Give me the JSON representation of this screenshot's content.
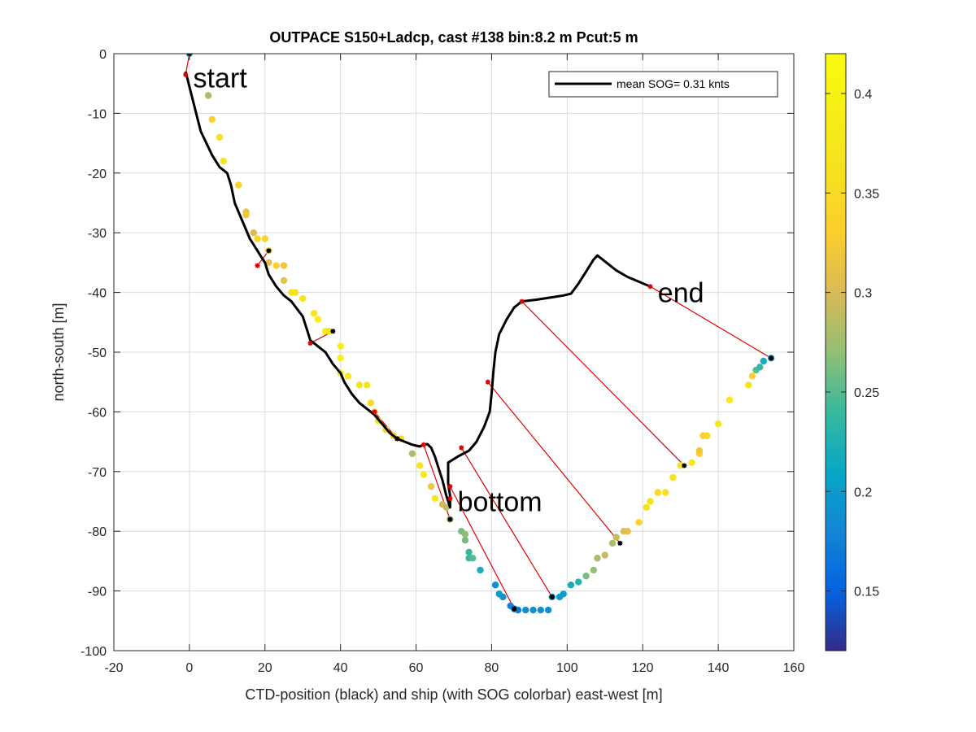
{
  "chart_data": {
    "type": "scatter",
    "title": "OUTPACE S150+Ladcp, cast #138 bin:8.2 m  Pcut:5 m",
    "xlabel": "CTD-position (black) and ship (with SOG colorbar) east-west [m]",
    "ylabel": "north-south [m]",
    "xlim": [
      -20,
      160
    ],
    "ylim": [
      -100,
      0
    ],
    "xticks": [
      "-20",
      "0",
      "20",
      "40",
      "60",
      "80",
      "100",
      "120",
      "140",
      "160"
    ],
    "yticks": [
      "0",
      "-10",
      "-20",
      "-30",
      "-40",
      "-50",
      "-60",
      "-70",
      "-80",
      "-90",
      "-100"
    ],
    "grid": true,
    "legend": {
      "position": "top-right",
      "entries": [
        "mean SOG=  0.31 knts"
      ]
    },
    "colorbar": {
      "range": [
        0.12,
        0.42
      ],
      "ticks": [
        "0.15",
        "0.2",
        "0.25",
        "0.3",
        "0.35",
        "0.4"
      ],
      "colormap": "parula"
    },
    "annotations": [
      {
        "text": "start",
        "x": 1,
        "y": -4
      },
      {
        "text": "end",
        "x": 124,
        "y": -40
      },
      {
        "text": "bottom",
        "x": 71,
        "y": -75
      }
    ],
    "ctd_track": [
      [
        -1,
        -3
      ],
      [
        1,
        -8
      ],
      [
        3,
        -13
      ],
      [
        6,
        -17
      ],
      [
        8,
        -19
      ],
      [
        10,
        -20
      ],
      [
        11,
        -22
      ],
      [
        12,
        -25
      ],
      [
        14,
        -28
      ],
      [
        16,
        -31
      ],
      [
        18,
        -33
      ],
      [
        19,
        -34
      ],
      [
        20,
        -35
      ],
      [
        21,
        -37
      ],
      [
        23,
        -39
      ],
      [
        25,
        -40.5
      ],
      [
        27,
        -41.5
      ],
      [
        30,
        -44
      ],
      [
        31,
        -46
      ],
      [
        32,
        -48
      ],
      [
        34,
        -49
      ],
      [
        36,
        -50
      ],
      [
        38,
        -52
      ],
      [
        40,
        -53.5
      ],
      [
        41,
        -55
      ],
      [
        43,
        -57
      ],
      [
        45,
        -58.5
      ],
      [
        47,
        -59.5
      ],
      [
        49,
        -60.5
      ],
      [
        51,
        -62
      ],
      [
        53,
        -63.5
      ],
      [
        55,
        -64.5
      ],
      [
        57,
        -65
      ],
      [
        59,
        -65.5
      ],
      [
        61,
        -65.8
      ],
      [
        62,
        -65.5
      ],
      [
        63,
        -65.4
      ],
      [
        64,
        -66
      ],
      [
        65,
        -67.5
      ],
      [
        66,
        -69.5
      ],
      [
        67,
        -71.5
      ],
      [
        68,
        -74
      ],
      [
        69,
        -76
      ],
      [
        69,
        -74
      ],
      [
        68.5,
        -72
      ],
      [
        68.5,
        -70
      ],
      [
        68.5,
        -68.5
      ],
      [
        71,
        -67.5
      ],
      [
        74,
        -66.5
      ],
      [
        76,
        -65
      ],
      [
        78,
        -62.5
      ],
      [
        79.5,
        -60
      ],
      [
        80,
        -57
      ],
      [
        80.5,
        -53
      ],
      [
        81,
        -50
      ],
      [
        82,
        -47
      ],
      [
        84,
        -44.5
      ],
      [
        86,
        -42.5
      ],
      [
        88,
        -41.5
      ],
      [
        92,
        -41.2
      ],
      [
        96,
        -40.8
      ],
      [
        99,
        -40.5
      ],
      [
        101,
        -40.2
      ],
      [
        103,
        -38.5
      ],
      [
        105,
        -36.5
      ],
      [
        107,
        -34.5
      ],
      [
        108,
        -33.8
      ],
      [
        110,
        -34.8
      ],
      [
        113,
        -36.3
      ],
      [
        116,
        -37.4
      ],
      [
        119,
        -38.2
      ],
      [
        122,
        -39
      ]
    ],
    "ship_points": [
      [
        0,
        0,
        0.22
      ],
      [
        5,
        -7,
        0.28
      ],
      [
        6,
        -11,
        0.33
      ],
      [
        8,
        -14,
        0.36
      ],
      [
        9,
        -18,
        0.37
      ],
      [
        13,
        -22,
        0.34
      ],
      [
        15,
        -26.5,
        0.31
      ],
      [
        15,
        -27,
        0.32
      ],
      [
        17,
        -30,
        0.3
      ],
      [
        18,
        -31,
        0.34
      ],
      [
        20,
        -31,
        0.34
      ],
      [
        21,
        -33,
        0.36
      ],
      [
        21,
        -35,
        0.31
      ],
      [
        23,
        -35.5,
        0.33
      ],
      [
        25,
        -35.5,
        0.32
      ],
      [
        25,
        -38,
        0.31
      ],
      [
        27,
        -40,
        0.36
      ],
      [
        28,
        -40,
        0.36
      ],
      [
        30,
        -41,
        0.37
      ],
      [
        33,
        -43.5,
        0.37
      ],
      [
        34,
        -44.5,
        0.39
      ],
      [
        36,
        -46.5,
        0.38
      ],
      [
        37,
        -46.5,
        0.36
      ],
      [
        40,
        -49,
        0.39
      ],
      [
        40,
        -51,
        0.4
      ],
      [
        40,
        -53.5,
        0.39
      ],
      [
        42,
        -54,
        0.38
      ],
      [
        45,
        -55.5,
        0.37
      ],
      [
        47,
        -55.5,
        0.37
      ],
      [
        48,
        -58.5,
        0.35
      ],
      [
        49,
        -60,
        0.37
      ],
      [
        50,
        -61.5,
        0.36
      ],
      [
        52,
        -63,
        0.35
      ],
      [
        54,
        -64,
        0.33
      ],
      [
        56,
        -64.5,
        0.35
      ],
      [
        59,
        -67,
        0.28
      ],
      [
        61,
        -69,
        0.37
      ],
      [
        62,
        -70.5,
        0.38
      ],
      [
        64,
        -72.5,
        0.32
      ],
      [
        65,
        -74.5,
        0.37
      ],
      [
        67,
        -75.5,
        0.3
      ],
      [
        68,
        -76,
        0.29
      ],
      [
        69,
        -78,
        0.27
      ],
      [
        72,
        -80,
        0.26
      ],
      [
        73,
        -80.5,
        0.27
      ],
      [
        73,
        -81.5,
        0.26
      ],
      [
        74,
        -83.5,
        0.24
      ],
      [
        74,
        -84.5,
        0.24
      ],
      [
        75,
        -84.5,
        0.25
      ],
      [
        77,
        -86.5,
        0.22
      ],
      [
        81,
        -89,
        0.19
      ],
      [
        82,
        -90.5,
        0.2
      ],
      [
        83,
        -91,
        0.19
      ],
      [
        85,
        -92.5,
        0.18
      ],
      [
        86,
        -93,
        0.16
      ],
      [
        87,
        -93.2,
        0.17
      ],
      [
        89,
        -93.2,
        0.19
      ],
      [
        91,
        -93.2,
        0.19
      ],
      [
        93,
        -93.2,
        0.19
      ],
      [
        95,
        -93.2,
        0.19
      ],
      [
        96,
        -91,
        0.19
      ],
      [
        98,
        -91,
        0.2
      ],
      [
        99,
        -90.5,
        0.2
      ],
      [
        101,
        -89,
        0.22
      ],
      [
        103,
        -88.5,
        0.23
      ],
      [
        105,
        -87.5,
        0.26
      ],
      [
        107,
        -86.5,
        0.27
      ],
      [
        108,
        -84.5,
        0.28
      ],
      [
        110,
        -84,
        0.29
      ],
      [
        112,
        -82,
        0.28
      ],
      [
        113,
        -81,
        0.29
      ],
      [
        115,
        -80,
        0.3
      ],
      [
        116,
        -80,
        0.31
      ],
      [
        119,
        -78.5,
        0.34
      ],
      [
        121,
        -76,
        0.36
      ],
      [
        122,
        -75,
        0.37
      ],
      [
        124,
        -73.5,
        0.35
      ],
      [
        126,
        -73.5,
        0.36
      ],
      [
        128,
        -71,
        0.36
      ],
      [
        130,
        -69,
        0.37
      ],
      [
        133,
        -68.5,
        0.38
      ],
      [
        135,
        -67,
        0.33
      ],
      [
        135,
        -66.5,
        0.32
      ],
      [
        136,
        -64,
        0.33
      ],
      [
        137,
        -64,
        0.34
      ],
      [
        140,
        -62,
        0.37
      ],
      [
        143,
        -58,
        0.38
      ],
      [
        148,
        -55.5,
        0.36
      ],
      [
        149,
        -54,
        0.33
      ],
      [
        150,
        -53,
        0.25
      ],
      [
        151,
        -52.5,
        0.24
      ],
      [
        152,
        -51.5,
        0.22
      ],
      [
        154,
        -51,
        0.21
      ]
    ],
    "ctd_markers": [
      [
        -1,
        -3.5
      ],
      [
        18,
        -35.5
      ],
      [
        32,
        -48.5
      ],
      [
        49,
        -60
      ],
      [
        55,
        -64.5
      ],
      [
        62,
        -65.5
      ],
      [
        69,
        -72.5
      ],
      [
        69,
        -74.5
      ],
      [
        72,
        -66
      ],
      [
        79,
        -55
      ],
      [
        88,
        -41.5
      ],
      [
        122,
        -39
      ]
    ],
    "ship_markers": [
      [
        0,
        0
      ],
      [
        21,
        -33
      ],
      [
        38,
        -46.5
      ],
      [
        55,
        -64.5
      ],
      [
        69,
        -78
      ],
      [
        86,
        -93
      ],
      [
        96,
        -91
      ],
      [
        114,
        -82
      ],
      [
        131,
        -69
      ],
      [
        154,
        -51
      ]
    ],
    "connectors": [
      [
        [
          -1,
          -3.5
        ],
        [
          0,
          0
        ]
      ],
      [
        [
          18,
          -35.5
        ],
        [
          21,
          -33
        ]
      ],
      [
        [
          32,
          -48.5
        ],
        [
          38,
          -46.5
        ]
      ],
      [
        [
          49,
          -60
        ],
        [
          55,
          -64.5
        ]
      ],
      [
        [
          62,
          -65.5
        ],
        [
          69,
          -78
        ]
      ],
      [
        [
          69,
          -72.5
        ],
        [
          86,
          -93
        ]
      ],
      [
        [
          72,
          -66
        ],
        [
          96,
          -91
        ]
      ],
      [
        [
          79,
          -55
        ],
        [
          114,
          -82
        ]
      ],
      [
        [
          88,
          -41.5
        ],
        [
          131,
          -69
        ]
      ],
      [
        [
          122,
          -39
        ],
        [
          154,
          -51
        ]
      ]
    ]
  }
}
